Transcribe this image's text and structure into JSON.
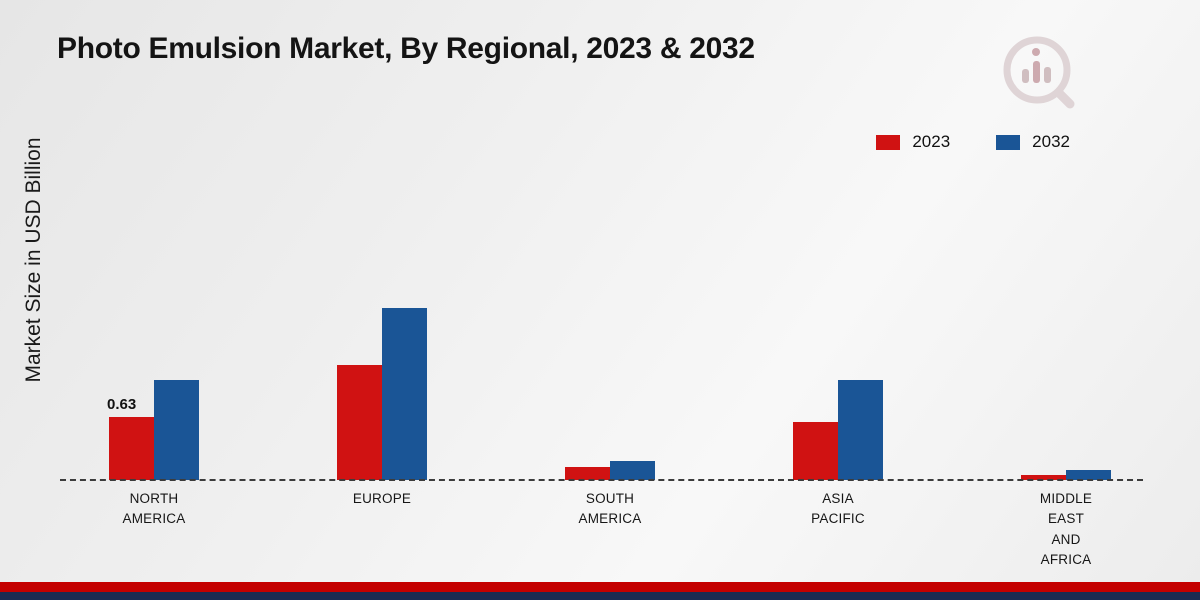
{
  "chart_data": {
    "type": "bar",
    "title": "Photo Emulsion Market, By Regional, 2023 & 2032",
    "ylabel": "Market Size in USD Billion",
    "xlabel": "",
    "categories": [
      "NORTH\nAMERICA",
      "EUROPE",
      "SOUTH\nAMERICA",
      "ASIA\nPACIFIC",
      "MIDDLE\nEAST\nAND\nAFRICA"
    ],
    "series": [
      {
        "name": "2023",
        "color": "#d01212",
        "values": [
          0.63,
          1.15,
          0.13,
          0.58,
          0.05
        ]
      },
      {
        "name": "2032",
        "color": "#1a5596",
        "values": [
          1.0,
          1.72,
          0.19,
          1.0,
          0.1
        ]
      }
    ],
    "annotations": [
      {
        "category_index": 0,
        "series_index": 0,
        "text": "0.63"
      }
    ],
    "ylim": [
      0,
      2
    ],
    "grid": false,
    "baseline_style": "dashed",
    "legend_position": "top-right"
  },
  "branding": {
    "logo_icon": "market-research-chart-magnifier-logo"
  },
  "footer": {
    "bar_colors": [
      "#c40000",
      "#1c2b52"
    ]
  }
}
